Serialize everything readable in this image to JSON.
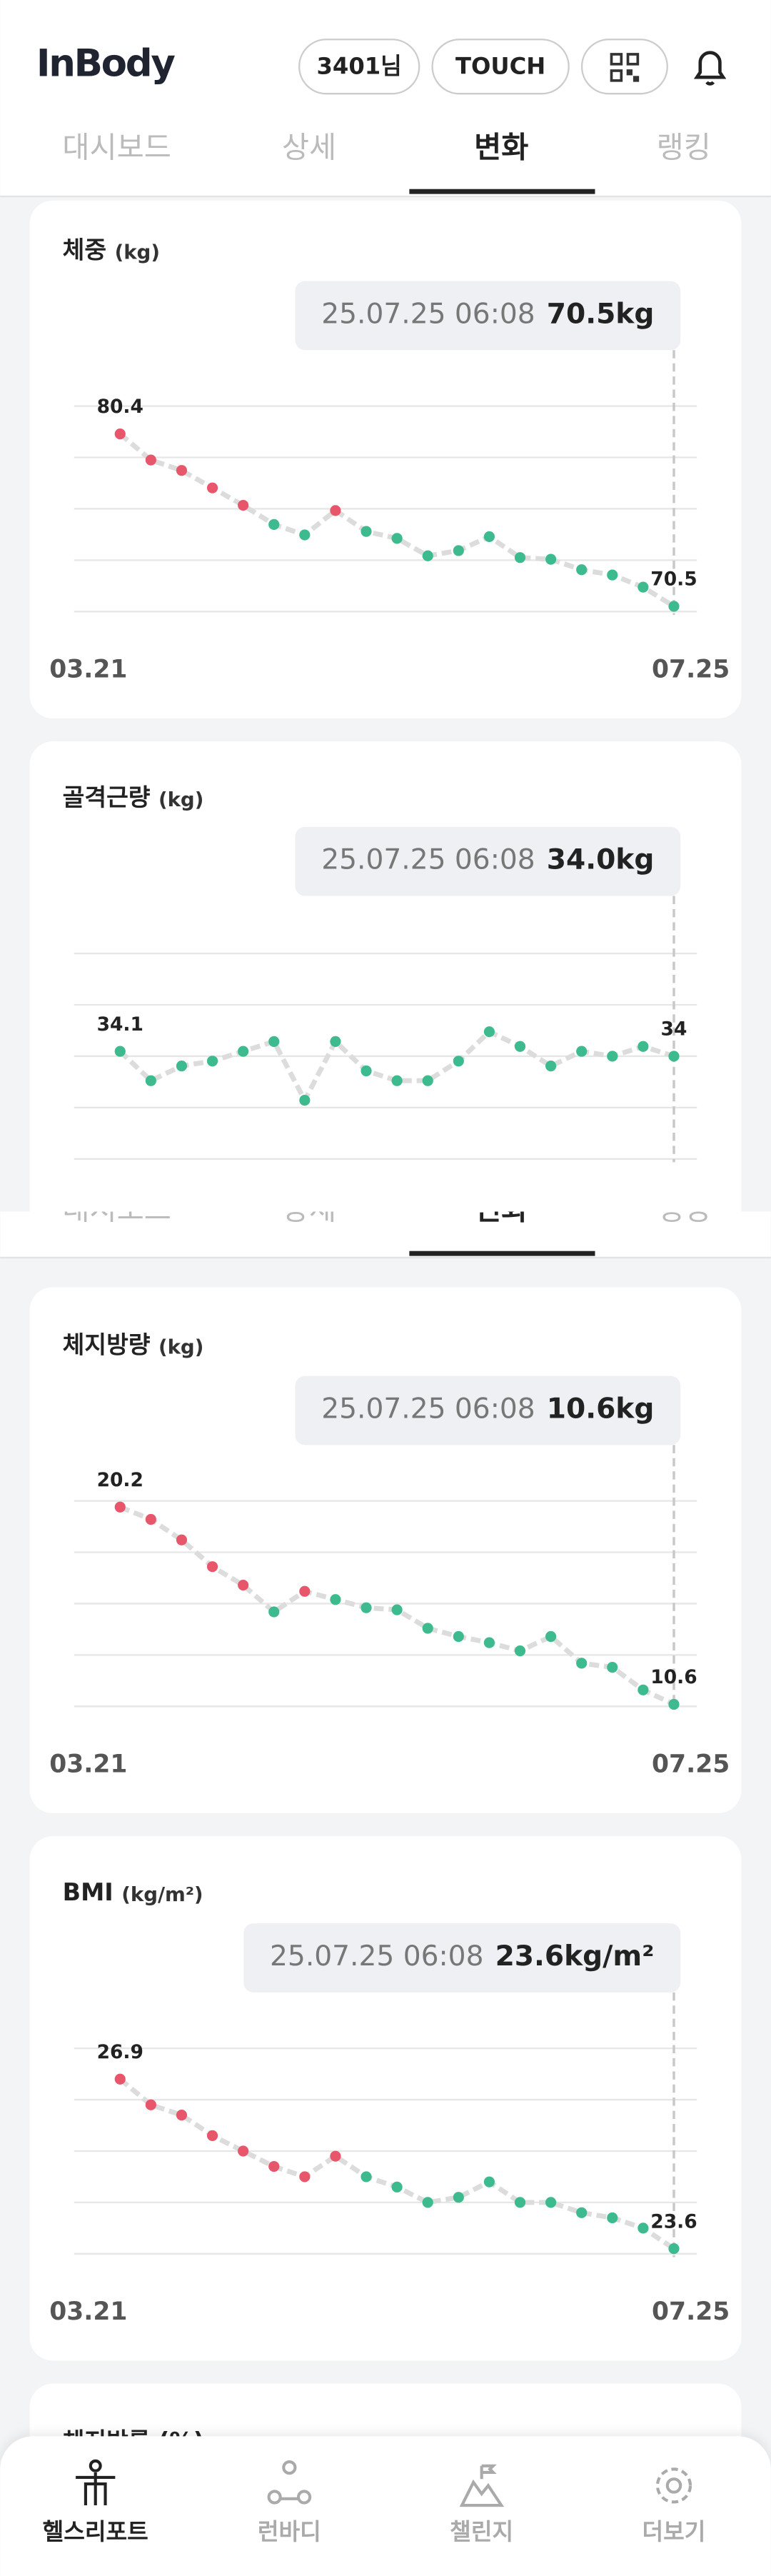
{
  "header": {
    "logo": "InBody",
    "user": "3401님",
    "touch": "TOUCH"
  },
  "tabs": [
    "대시보드",
    "상세",
    "변화",
    "랭킹"
  ],
  "chart_data": [
    {
      "type": "line",
      "title": "체중",
      "unit": "(kg)",
      "tooltip_date": "25.07.25 06:08",
      "tooltip_value": "70.5kg",
      "x_start": "03.21",
      "x_end": "07.25",
      "ylim": [
        70.2,
        82.0
      ],
      "values": [
        80.4,
        78.9,
        78.3,
        77.3,
        76.3,
        75.2,
        74.6,
        76.0,
        74.8,
        74.4,
        73.4,
        73.7,
        74.5,
        73.3,
        73.2,
        72.6,
        72.3,
        71.6,
        70.5
      ],
      "colors": [
        "#e8566c",
        "#e8566c",
        "#e8566c",
        "#e8566c",
        "#e8566c",
        "#3dbb8e",
        "#3dbb8e",
        "#e8566c",
        "#3dbb8e",
        "#3dbb8e",
        "#3dbb8e",
        "#3dbb8e",
        "#3dbb8e",
        "#3dbb8e",
        "#3dbb8e",
        "#3dbb8e",
        "#3dbb8e",
        "#3dbb8e",
        "#3dbb8e"
      ]
    },
    {
      "type": "line",
      "title": "골격근량",
      "unit": "(kg)",
      "tooltip_date": "25.07.25 06:08",
      "tooltip_value": "34.0kg",
      "ylim": [
        31.9,
        36.1
      ],
      "values": [
        34.1,
        33.5,
        33.8,
        33.9,
        34.1,
        34.3,
        33.1,
        34.3,
        33.7,
        33.5,
        33.5,
        33.9,
        34.5,
        34.2,
        33.8,
        34.1,
        34.0,
        34.2,
        34.0
      ],
      "colors": [
        "#3dbb8e",
        "#3dbb8e",
        "#3dbb8e",
        "#3dbb8e",
        "#3dbb8e",
        "#3dbb8e",
        "#3dbb8e",
        "#3dbb8e",
        "#3dbb8e",
        "#3dbb8e",
        "#3dbb8e",
        "#3dbb8e",
        "#3dbb8e",
        "#3dbb8e",
        "#3dbb8e",
        "#3dbb8e",
        "#3dbb8e",
        "#3dbb8e",
        "#3dbb8e"
      ]
    },
    {
      "type": "line",
      "title": "체지방량",
      "unit": "(kg)",
      "tooltip_date": "25.07.25 06:08",
      "tooltip_value": "10.6kg",
      "x_start": "03.21",
      "x_end": "07.25",
      "ylim": [
        10.5,
        20.5
      ],
      "values": [
        20.2,
        19.6,
        18.6,
        17.3,
        16.4,
        15.1,
        16.1,
        15.7,
        15.3,
        15.2,
        14.3,
        13.9,
        13.6,
        13.2,
        13.9,
        12.6,
        12.4,
        11.3,
        10.6
      ],
      "colors": [
        "#e8566c",
        "#e8566c",
        "#e8566c",
        "#e8566c",
        "#e8566c",
        "#3dbb8e",
        "#e8566c",
        "#3dbb8e",
        "#3dbb8e",
        "#3dbb8e",
        "#3dbb8e",
        "#3dbb8e",
        "#3dbb8e",
        "#3dbb8e",
        "#3dbb8e",
        "#3dbb8e",
        "#3dbb8e",
        "#3dbb8e",
        "#3dbb8e"
      ]
    },
    {
      "type": "line",
      "title": "BMI",
      "unit": "(kg/m²)",
      "tooltip_date": "25.07.25 06:08",
      "tooltip_value": "23.6kg/m²",
      "x_start": "03.21",
      "x_end": "07.25",
      "ylim": [
        23.5,
        27.5
      ],
      "values": [
        26.9,
        26.4,
        26.2,
        25.8,
        25.5,
        25.2,
        25.0,
        25.4,
        25.0,
        24.8,
        24.5,
        24.6,
        24.9,
        24.5,
        24.5,
        24.3,
        24.2,
        24.0,
        23.6
      ],
      "colors": [
        "#e8566c",
        "#e8566c",
        "#e8566c",
        "#e8566c",
        "#e8566c",
        "#e8566c",
        "#e8566c",
        "#e8566c",
        "#3dbb8e",
        "#3dbb8e",
        "#3dbb8e",
        "#3dbb8e",
        "#3dbb8e",
        "#3dbb8e",
        "#3dbb8e",
        "#3dbb8e",
        "#3dbb8e",
        "#3dbb8e",
        "#3dbb8e"
      ]
    }
  ],
  "next_card_title": "체지방률 (%)",
  "nav": [
    "헬스리포트",
    "런바디",
    "챌린지",
    "더보기"
  ]
}
